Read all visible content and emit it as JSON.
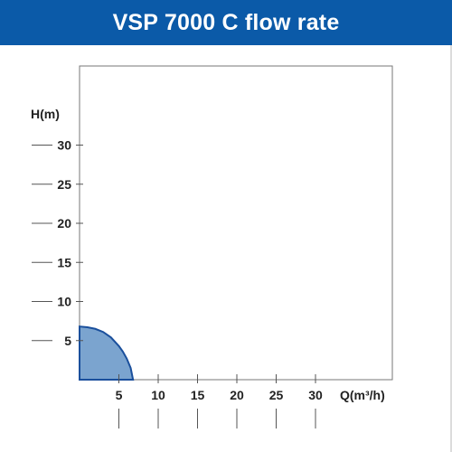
{
  "header": {
    "title": "VSP 7000 C flow rate"
  },
  "colors": {
    "header_bg": "#0b5aa8",
    "curve_fill": "#7ba4cf",
    "curve_stroke": "#1a4f9c",
    "tick_line": "#555555",
    "frame": "#777777"
  },
  "chart_data": {
    "type": "area",
    "title": "VSP 7000 C flow rate",
    "xlabel": "Q(m³/h)",
    "ylabel": "H(m)",
    "xlim": [
      0,
      40
    ],
    "ylim": [
      0,
      35
    ],
    "x_ticks": [
      5,
      10,
      15,
      20,
      25,
      30
    ],
    "y_ticks": [
      5,
      10,
      15,
      20,
      25,
      30
    ],
    "x_tick_labels": [
      "5",
      "10",
      "15",
      "20",
      "25",
      "30"
    ],
    "y_tick_labels": [
      "5",
      "10",
      "15",
      "20",
      "25",
      "30"
    ],
    "grid": false,
    "series": [
      {
        "x": [
          0,
          1,
          2,
          3,
          4,
          5,
          5.5,
          6,
          6.5,
          6.8
        ],
        "y": [
          6.8,
          6.7,
          6.5,
          6.1,
          5.4,
          4.3,
          3.6,
          2.7,
          1.5,
          0
        ]
      }
    ]
  }
}
